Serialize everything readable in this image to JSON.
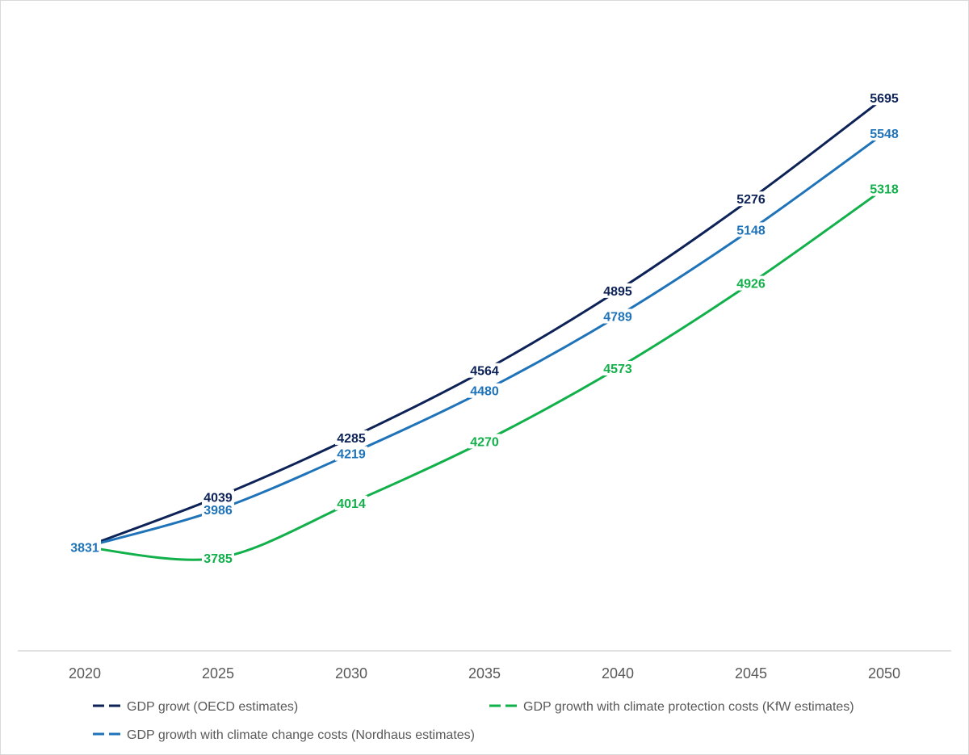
{
  "chart_data": {
    "type": "line",
    "categories": [
      "2020",
      "2025",
      "2030",
      "2035",
      "2040",
      "2045",
      "2050"
    ],
    "ylim": [
      3400,
      5900
    ],
    "grid": false,
    "legend_position": "bottom",
    "series": [
      {
        "name": "GDP growt (OECD estimates)",
        "color": "#0d2257",
        "values": [
          3831,
          4039,
          4285,
          4564,
          4895,
          5276,
          5695
        ],
        "labels": [
          "",
          "4039",
          "4285",
          "4564",
          "4895",
          "5276",
          "5695"
        ]
      },
      {
        "name": "GDP growth with climate change costs (Nordhaus estimates)",
        "color": "#1f73b8",
        "values": [
          3831,
          3986,
          4219,
          4480,
          4789,
          5148,
          5548
        ],
        "labels": [
          "3831",
          "3986",
          "4219",
          "4480",
          "4789",
          "5148",
          "5548"
        ]
      },
      {
        "name": "GDP growth with climate protection costs (KfW estimates)",
        "color": "#12b04a",
        "values": [
          3831,
          3785,
          4014,
          4270,
          4573,
          4926,
          5318
        ],
        "labels": [
          "",
          "3785",
          "4014",
          "4270",
          "4573",
          "4926",
          "5318"
        ]
      }
    ]
  }
}
